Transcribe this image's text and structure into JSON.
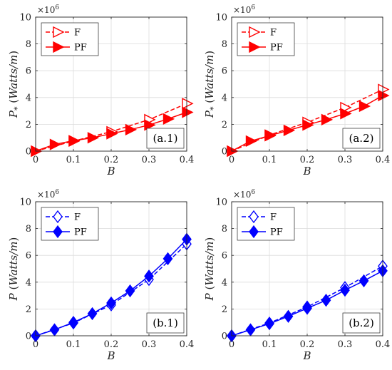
{
  "chart_data": [
    {
      "type": "line",
      "panel_label": "(a.1)",
      "xlabel": "B",
      "ylabel": {
        "symbol": "P",
        "sub": "*",
        "units_open": " (",
        "units": "Watts/m",
        "units_close": ")"
      },
      "exponent": {
        "base": "×10",
        "power": "6"
      },
      "xlim": [
        0,
        0.4
      ],
      "ylim": [
        0,
        10
      ],
      "xticks": [
        "0",
        "0.1",
        "0.2",
        "0.3",
        "0.4"
      ],
      "yticks": [
        "0",
        "2",
        "4",
        "6",
        "8",
        "10"
      ],
      "grid": true,
      "legend_position": "top-left",
      "color": "#ff0000",
      "series": [
        {
          "name": "F",
          "line": "dashed",
          "marker": "triangle-right-open",
          "x": [
            0,
            0.1,
            0.2,
            0.3,
            0.4
          ],
          "y": [
            0,
            0.75,
            1.45,
            2.35,
            3.55
          ]
        },
        {
          "name": "PF",
          "line": "solid",
          "marker": "triangle-right-filled",
          "x": [
            0,
            0.05,
            0.1,
            0.15,
            0.2,
            0.25,
            0.3,
            0.35,
            0.4
          ],
          "y": [
            0,
            0.5,
            0.78,
            1.0,
            1.3,
            1.6,
            1.95,
            2.4,
            2.9
          ]
        }
      ]
    },
    {
      "type": "line",
      "panel_label": "(a.2)",
      "xlabel": "B",
      "ylabel": {
        "symbol": "P",
        "sub": "*",
        "units_open": " (",
        "units": "Watts/m",
        "units_close": ")"
      },
      "exponent": {
        "base": "×10",
        "power": "6"
      },
      "xlim": [
        0,
        0.4
      ],
      "ylim": [
        0,
        10
      ],
      "xticks": [
        "0",
        "0.1",
        "0.2",
        "0.3",
        "0.4"
      ],
      "yticks": [
        "0",
        "2",
        "4",
        "6",
        "8",
        "10"
      ],
      "grid": true,
      "legend_position": "top-left",
      "color": "#ff0000",
      "series": [
        {
          "name": "F",
          "line": "dashed",
          "marker": "triangle-right-open",
          "x": [
            0,
            0.1,
            0.2,
            0.3,
            0.4
          ],
          "y": [
            0,
            1.2,
            2.15,
            3.25,
            4.6
          ]
        },
        {
          "name": "PF",
          "line": "solid",
          "marker": "triangle-right-filled",
          "x": [
            0,
            0.05,
            0.1,
            0.15,
            0.2,
            0.25,
            0.3,
            0.35,
            0.4
          ],
          "y": [
            0,
            0.75,
            1.15,
            1.55,
            1.95,
            2.35,
            2.8,
            3.35,
            4.15
          ]
        }
      ]
    },
    {
      "type": "line",
      "panel_label": "(b.1)",
      "xlabel": "B",
      "ylabel": {
        "symbol": "P",
        "sub": "",
        "units_open": " (",
        "units": "Watts/m",
        "units_close": ")"
      },
      "exponent": {
        "base": "×10",
        "power": "6"
      },
      "xlim": [
        0,
        0.4
      ],
      "ylim": [
        0,
        10
      ],
      "xticks": [
        "0",
        "0.1",
        "0.2",
        "0.3",
        "0.4"
      ],
      "yticks": [
        "0",
        "2",
        "4",
        "6",
        "8",
        "10"
      ],
      "grid": true,
      "legend_position": "top-left",
      "color": "#0000ff",
      "series": [
        {
          "name": "F",
          "line": "dashed",
          "marker": "diamond-open",
          "x": [
            0,
            0.1,
            0.2,
            0.3,
            0.4
          ],
          "y": [
            0,
            0.95,
            2.3,
            4.2,
            6.85
          ]
        },
        {
          "name": "PF",
          "line": "solid",
          "marker": "diamond-filled",
          "x": [
            0,
            0.05,
            0.1,
            0.15,
            0.2,
            0.25,
            0.3,
            0.35,
            0.4
          ],
          "y": [
            0,
            0.45,
            1.0,
            1.65,
            2.45,
            3.35,
            4.45,
            5.75,
            7.2
          ]
        }
      ]
    },
    {
      "type": "line",
      "panel_label": "(b.2)",
      "xlabel": "B",
      "ylabel": {
        "symbol": "P",
        "sub": "",
        "units_open": " (",
        "units": "Watts/m",
        "units_close": ")"
      },
      "exponent": {
        "base": "×10",
        "power": "6"
      },
      "xlim": [
        0,
        0.4
      ],
      "ylim": [
        0,
        10
      ],
      "xticks": [
        "0",
        "0.1",
        "0.2",
        "0.3",
        "0.4"
      ],
      "yticks": [
        "0",
        "2",
        "4",
        "6",
        "8",
        "10"
      ],
      "grid": true,
      "legend_position": "top-left",
      "color": "#0000ff",
      "series": [
        {
          "name": "F",
          "line": "dashed",
          "marker": "diamond-open",
          "x": [
            0,
            0.1,
            0.2,
            0.3,
            0.4
          ],
          "y": [
            0,
            0.95,
            2.15,
            3.6,
            5.2
          ]
        },
        {
          "name": "PF",
          "line": "solid",
          "marker": "diamond-filled",
          "x": [
            0,
            0.05,
            0.1,
            0.15,
            0.2,
            0.25,
            0.3,
            0.35,
            0.4
          ],
          "y": [
            0,
            0.45,
            0.9,
            1.45,
            2.05,
            2.65,
            3.4,
            4.1,
            4.85
          ]
        }
      ]
    }
  ]
}
